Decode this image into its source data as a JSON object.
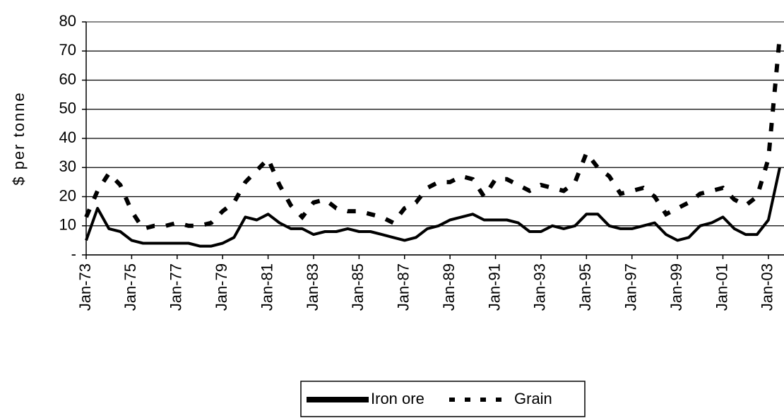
{
  "chart_data": {
    "type": "line",
    "ylabel": "$ per tonne",
    "categories": [
      "Jan-73",
      null,
      null,
      null,
      "Jan-75",
      null,
      null,
      null,
      "Jan-77",
      null,
      null,
      null,
      "Jan-79",
      null,
      null,
      null,
      "Jan-81",
      null,
      null,
      null,
      "Jan-83",
      null,
      null,
      null,
      "Jan-85",
      null,
      null,
      null,
      "Jan-87",
      null,
      null,
      null,
      "Jan-89",
      null,
      null,
      null,
      "Jan-91",
      null,
      null,
      null,
      "Jan-93",
      null,
      null,
      null,
      "Jan-95",
      null,
      null,
      null,
      "Jan-97",
      null,
      null,
      null,
      "Jan-99",
      null,
      null,
      null,
      "Jan-01",
      null,
      null,
      null,
      "Jan-03",
      null
    ],
    "series": [
      {
        "name": "Iron ore",
        "color": "#000000",
        "style": "solid",
        "values": [
          5,
          16,
          9,
          8,
          5,
          4,
          4,
          4,
          4,
          4,
          3,
          3,
          4,
          6,
          13,
          12,
          14,
          11,
          9,
          9,
          7,
          8,
          8,
          9,
          8,
          8,
          7,
          6,
          5,
          6,
          9,
          10,
          12,
          13,
          14,
          12,
          12,
          12,
          11,
          8,
          8,
          10,
          9,
          10,
          14,
          14,
          10,
          9,
          9,
          10,
          11,
          7,
          5,
          6,
          10,
          11,
          13,
          9,
          7,
          7,
          12,
          30
        ]
      },
      {
        "name": "Grain",
        "color": "#000000",
        "style": "dashed",
        "values": [
          13,
          22,
          28,
          24,
          15,
          9,
          10,
          10,
          11,
          10,
          10,
          11,
          15,
          18,
          25,
          29,
          33,
          24,
          17,
          13,
          18,
          19,
          16,
          15,
          15,
          14,
          13,
          11,
          16,
          18,
          23,
          25,
          25,
          27,
          26,
          20,
          26,
          26,
          24,
          22,
          24,
          23,
          22,
          25,
          35,
          30,
          27,
          21,
          22,
          23,
          20,
          14,
          16,
          18,
          21,
          22,
          23,
          19,
          17,
          20,
          33,
          75
        ]
      }
    ],
    "ylim": [
      0,
      80
    ],
    "yticks": [
      {
        "value": 0,
        "label": "-"
      },
      10,
      20,
      30,
      40,
      50,
      60,
      70,
      80
    ],
    "grid": true,
    "legend": "bottom"
  }
}
